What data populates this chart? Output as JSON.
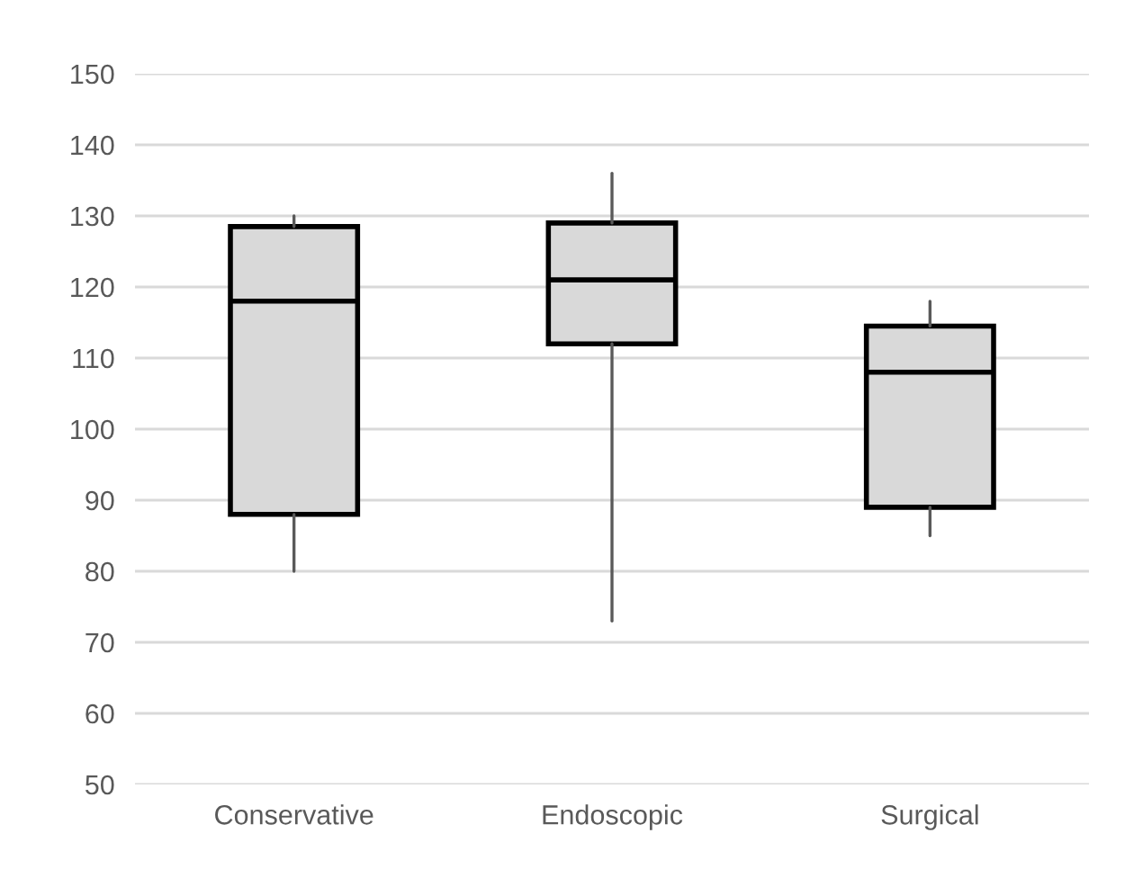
{
  "chart_data": {
    "type": "box",
    "categories": [
      "Conservative",
      "Endoscopic",
      "Surgical"
    ],
    "boxes": [
      {
        "low": 80,
        "q1": 88,
        "median": 118,
        "q3": 128.5,
        "high": 130
      },
      {
        "low": 73,
        "q1": 112,
        "median": 121,
        "q3": 129,
        "high": 136
      },
      {
        "low": 85,
        "q1": 89,
        "median": 108,
        "q3": 114.5,
        "high": 118
      }
    ],
    "color": "#d9d9d9",
    "ylim": [
      50,
      150
    ],
    "yticks": [
      50,
      60,
      70,
      80,
      90,
      100,
      110,
      120,
      130,
      140,
      150
    ],
    "grid": "y",
    "legend": false
  }
}
